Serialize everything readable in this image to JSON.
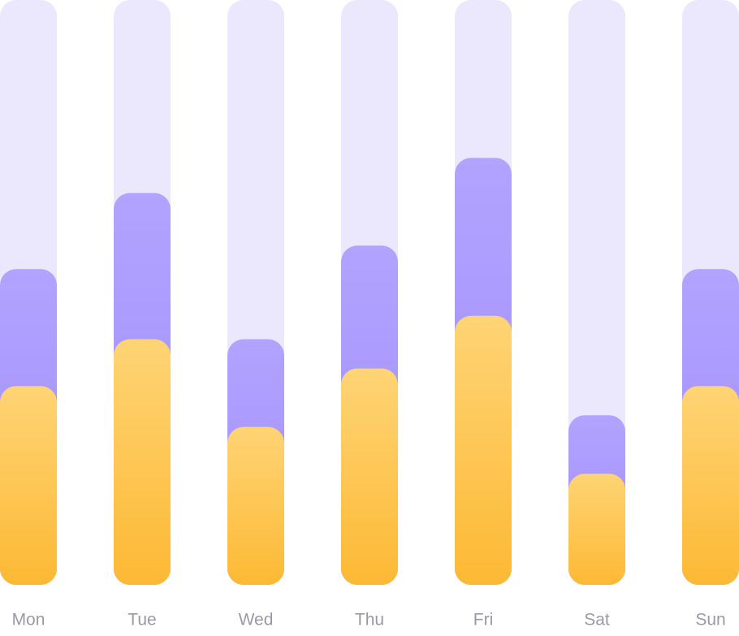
{
  "chart_data": {
    "type": "bar",
    "categories": [
      "Mon",
      "Tue",
      "Wed",
      "Thu",
      "Fri",
      "Sat",
      "Sun"
    ],
    "series": [
      {
        "color": [
          "#b2a3ff",
          "#9f8cfa"
        ],
        "values": [
          54,
          67,
          42,
          58,
          73,
          29,
          54
        ]
      },
      {
        "color": [
          "#fed475",
          "#fdb934"
        ],
        "values": [
          34,
          42,
          27,
          37,
          46,
          19,
          34
        ]
      }
    ],
    "track_color": "#ebe8fd",
    "ylim": [
      0,
      100
    ]
  }
}
